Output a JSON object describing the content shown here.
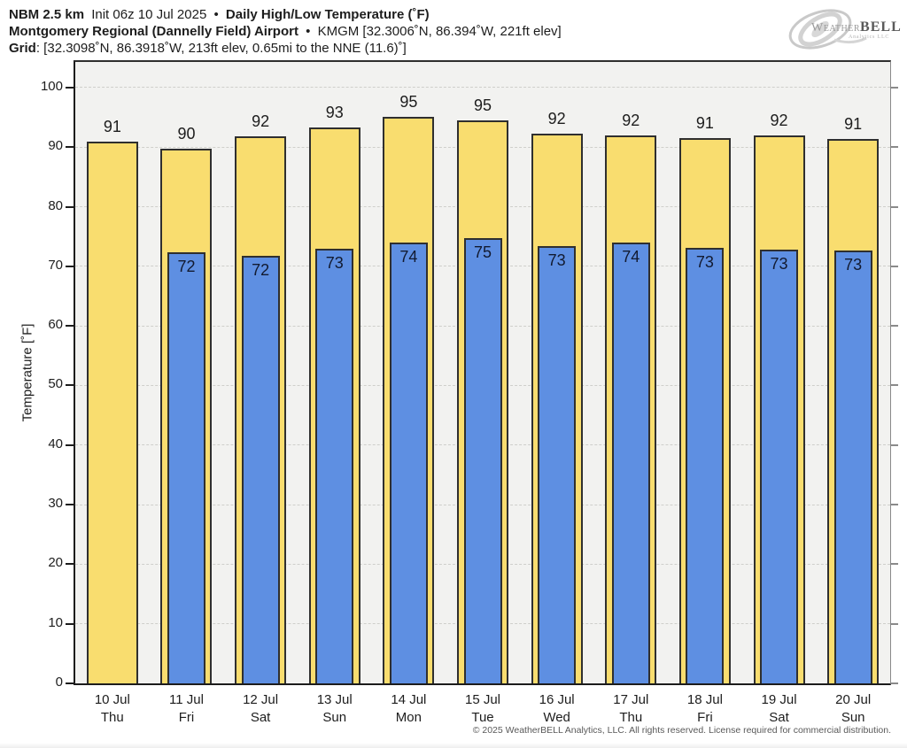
{
  "header": {
    "line1": {
      "model": "NBM 2.5 km",
      "init": "Init 06z 10 Jul 2025",
      "sep": "•",
      "product": "Daily High/Low Temperature (˚F)"
    },
    "line2": {
      "station": "Montgomery Regional (Dannelly Field) Airport",
      "sep": "•",
      "meta": "KMGM [32.3006˚N, 86.394˚W, 221ft elev]"
    },
    "line3": {
      "label": "Grid",
      "meta": ": [32.3098˚N, 86.3918˚W, 213ft elev, 0.65mi to the NNE (11.6)˚]"
    }
  },
  "logo": {
    "weather": "Weather",
    "bell": "BELL",
    "sub": "Analytics LLC"
  },
  "chart_data": {
    "type": "bar",
    "title": "Daily High/Low Temperature (˚F)",
    "ylabel": "Temperature [˚F]",
    "ylim": [
      0,
      104.3
    ],
    "y_ticks": [
      0,
      10,
      20,
      30,
      40,
      50,
      60,
      70,
      80,
      90,
      100
    ],
    "grid": "horizontal dashed, on",
    "legend": "none",
    "plot_bg": "#f2f2f0",
    "categories": [
      {
        "date": "10 Jul",
        "day": "Thu"
      },
      {
        "date": "11 Jul",
        "day": "Fri"
      },
      {
        "date": "12 Jul",
        "day": "Sat"
      },
      {
        "date": "13 Jul",
        "day": "Sun"
      },
      {
        "date": "14 Jul",
        "day": "Mon"
      },
      {
        "date": "15 Jul",
        "day": "Tue"
      },
      {
        "date": "16 Jul",
        "day": "Wed"
      },
      {
        "date": "17 Jul",
        "day": "Thu"
      },
      {
        "date": "18 Jul",
        "day": "Fri"
      },
      {
        "date": "19 Jul",
        "day": "Sat"
      },
      {
        "date": "20 Jul",
        "day": "Sun"
      }
    ],
    "series": [
      {
        "name": "High",
        "color": "#f9dd6f",
        "border": "#2f2f2f",
        "labels": [
          91,
          90,
          92,
          93,
          95,
          95,
          92,
          92,
          91,
          92,
          91
        ],
        "values": [
          91.0,
          89.8,
          91.8,
          93.3,
          95.1,
          94.5,
          92.2,
          91.9,
          91.5,
          91.9,
          91.4
        ]
      },
      {
        "name": "Low",
        "color": "#5e8fe2",
        "border": "#2f2f2f",
        "labels": [
          null,
          72,
          72,
          73,
          74,
          75,
          73,
          74,
          73,
          73,
          73
        ],
        "values": [
          null,
          72.4,
          71.7,
          73.0,
          74.0,
          74.7,
          73.4,
          74.0,
          73.1,
          72.8,
          72.6
        ]
      }
    ]
  },
  "footer": {
    "copyright": "© 2025 WeatherBELL Analytics, LLC. All rights reserved. License required for commercial distribution."
  }
}
